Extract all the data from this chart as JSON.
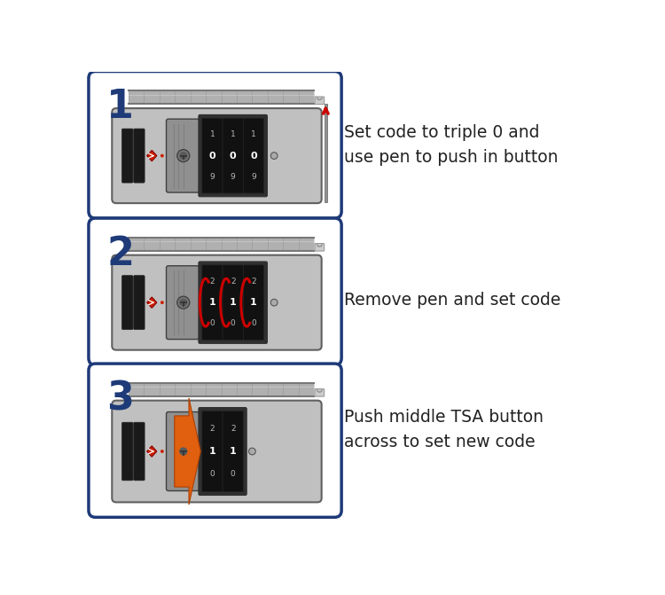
{
  "bg_color": "#ffffff",
  "border_color": "#1e3a78",
  "panel_bg": "#ffffff",
  "lock_body_color": "#c0c0c0",
  "lock_body_shadow": "#a8a8a8",
  "lock_outline": "#606060",
  "dial_bg": "#1a1a1a",
  "dial_border": "#404040",
  "dial_text_white": "#ffffff",
  "dial_red_curve": "#cc0000",
  "red_dot_color": "#cc2200",
  "diamond_red": "#cc2200",
  "diamond_dark": "#880000",
  "arrow_red": "#cc0000",
  "orange_color": "#e06010",
  "orange_dark": "#b04000",
  "step_color": "#1e3a78",
  "text_color": "#222222",
  "strap_mid": "#b0b0b0",
  "strap_dark": "#787878",
  "strap_light": "#d0d0d0",
  "pen_gray": "#909090",
  "pen_dark": "#606060",
  "lock_icon_color": "#aaaaaa",
  "tsa_mid_btn": "#909090",
  "tsa_dark_btn": "#606060",
  "panels": [
    {
      "step": "1",
      "label": "Set code to triple 0 and\nuse pen to push in button",
      "dial_numbers": [
        [
          "1",
          "0",
          "9"
        ],
        [
          "1",
          "0",
          "9"
        ],
        [
          "1",
          "0",
          "9"
        ]
      ],
      "dial_highlight": [
        false,
        false,
        false
      ],
      "show_pen": true,
      "show_orange": false,
      "num_dials": 3
    },
    {
      "step": "2",
      "label": "Remove pen and set code",
      "dial_numbers": [
        [
          "2",
          "1",
          "0"
        ],
        [
          "2",
          "1",
          "0"
        ],
        [
          "2",
          "1",
          "0"
        ]
      ],
      "dial_highlight": [
        true,
        true,
        true
      ],
      "show_pen": false,
      "show_orange": false,
      "num_dials": 3
    },
    {
      "step": "3",
      "label": "Push middle TSA button\nacross to set new code",
      "dial_numbers": [
        [
          "2",
          "1",
          "0"
        ],
        [
          "2",
          "1",
          "0"
        ]
      ],
      "dial_highlight": [
        false,
        false
      ],
      "show_pen": false,
      "show_orange": true,
      "num_dials": 2
    }
  ]
}
